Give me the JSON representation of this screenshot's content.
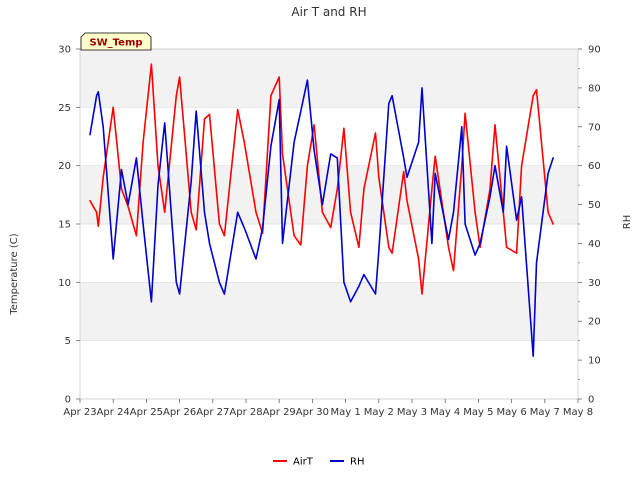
{
  "chart_data": {
    "type": "line",
    "title": "Air T and RH",
    "xlabel": "",
    "ylabel": "Temperature (C)",
    "y2label": "RH",
    "ylim": [
      0,
      30
    ],
    "y2lim": [
      0,
      90
    ],
    "xlim": [
      0,
      15
    ],
    "yticks": [
      0,
      5,
      10,
      15,
      20,
      25,
      30
    ],
    "y2ticks": [
      0,
      10,
      20,
      30,
      40,
      50,
      60,
      70,
      80,
      90
    ],
    "x_tick_labels": [
      "Apr 23",
      "Apr 24",
      "Apr 25",
      "Apr 26",
      "Apr 27",
      "Apr 28",
      "Apr 29",
      "Apr 30",
      "May 1",
      "May 2",
      "May 3",
      "May 4",
      "May 5",
      "May 6",
      "May 7",
      "May 8"
    ],
    "grid": true,
    "banded_background": true,
    "annotation": {
      "text": "SW_Temp",
      "bg": "#ffffcc",
      "fg": "#990000"
    },
    "legend_position": "bottom-center",
    "series": [
      {
        "name": "AirT",
        "axis": "left",
        "color": "#ff0000",
        "x": [
          0.3,
          0.5,
          0.55,
          0.7,
          1.0,
          1.25,
          1.45,
          1.7,
          1.9,
          2.15,
          2.35,
          2.55,
          2.9,
          3.0,
          3.35,
          3.5,
          3.75,
          3.9,
          4.2,
          4.35,
          4.75,
          4.95,
          5.3,
          5.5,
          5.75,
          6.0,
          6.1,
          6.45,
          6.65,
          6.85,
          7.05,
          7.3,
          7.55,
          7.75,
          7.95,
          8.15,
          8.4,
          8.55,
          8.9,
          9.0,
          9.3,
          9.4,
          9.75,
          9.85,
          10.2,
          10.3,
          10.6,
          10.7,
          11.1,
          11.25,
          11.5,
          11.6,
          11.9,
          12.05,
          12.35,
          12.5,
          12.75,
          12.85,
          13.15,
          13.3,
          13.65,
          13.75,
          14.1,
          14.25
        ],
        "values": [
          17.0,
          16.0,
          14.8,
          19.0,
          25.0,
          18.0,
          16.5,
          14.0,
          22.0,
          28.7,
          20.0,
          16.0,
          26.0,
          27.6,
          16.0,
          14.5,
          24.0,
          24.4,
          15.0,
          14.0,
          24.8,
          22.0,
          16.0,
          14.2,
          26.0,
          27.6,
          21.0,
          14.0,
          13.2,
          20.0,
          23.5,
          16.0,
          14.7,
          18.0,
          23.2,
          16.0,
          13.0,
          18.0,
          22.8,
          19.0,
          13.0,
          12.5,
          19.5,
          17.0,
          12.0,
          9.0,
          18.0,
          20.8,
          13.0,
          11.0,
          20.0,
          24.5,
          16.0,
          13.0,
          18.0,
          23.5,
          16.0,
          13.0,
          12.5,
          20.0,
          26.0,
          26.5,
          16.0,
          15.0
        ]
      },
      {
        "name": "RH",
        "axis": "right",
        "color": "#0000cc",
        "x": [
          0.3,
          0.5,
          0.55,
          0.7,
          1.0,
          1.25,
          1.45,
          1.7,
          1.9,
          2.15,
          2.35,
          2.55,
          2.9,
          3.0,
          3.35,
          3.5,
          3.75,
          3.9,
          4.2,
          4.35,
          4.75,
          4.95,
          5.3,
          5.5,
          5.75,
          6.0,
          6.1,
          6.45,
          6.65,
          6.85,
          7.05,
          7.3,
          7.55,
          7.75,
          7.95,
          8.15,
          8.4,
          8.55,
          8.9,
          9.0,
          9.3,
          9.4,
          9.75,
          9.85,
          10.2,
          10.3,
          10.6,
          10.7,
          11.1,
          11.25,
          11.5,
          11.6,
          11.9,
          12.05,
          12.35,
          12.5,
          12.75,
          12.85,
          13.15,
          13.3,
          13.65,
          13.75,
          14.1,
          14.25
        ],
        "values": [
          68,
          78,
          79,
          70,
          36,
          59,
          50,
          62,
          45,
          25,
          55,
          71,
          30,
          27,
          56,
          74,
          48,
          40,
          30,
          27,
          48,
          44,
          36,
          44,
          65,
          77,
          40,
          66,
          74,
          82,
          64,
          50,
          63,
          62,
          30,
          25,
          29,
          32,
          27,
          38,
          76,
          78,
          62,
          57,
          66,
          80,
          40,
          58,
          41,
          48,
          70,
          45,
          37,
          40,
          52,
          60,
          48,
          65,
          46,
          52,
          11,
          35,
          58,
          62
        ]
      }
    ]
  }
}
